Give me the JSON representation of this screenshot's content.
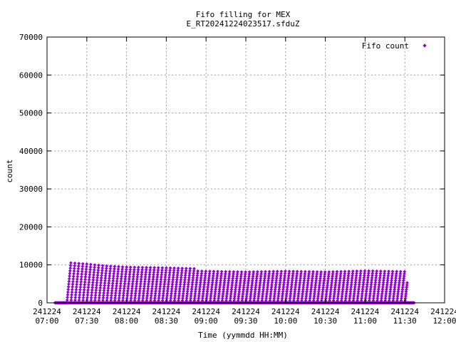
{
  "chart_data": {
    "type": "scatter",
    "title": [
      "Fifo filling for MEX",
      "E_RT20241224023517.sfduZ"
    ],
    "xlabel": "Time (yymmdd HH:MM)",
    "ylabel": "count",
    "grid": true,
    "legend_position": "top-right",
    "xlim": [
      "07:00",
      "12:00"
    ],
    "ylim": [
      0,
      70000
    ],
    "x_ticks": [
      [
        "241224",
        "07:00"
      ],
      [
        "241224",
        "07:30"
      ],
      [
        "241224",
        "08:00"
      ],
      [
        "241224",
        "08:30"
      ],
      [
        "241224",
        "09:00"
      ],
      [
        "241224",
        "09:30"
      ],
      [
        "241224",
        "10:00"
      ],
      [
        "241224",
        "10:30"
      ],
      [
        "241224",
        "11:00"
      ],
      [
        "241224",
        "11:30"
      ],
      [
        "241224",
        "12:00"
      ]
    ],
    "y_ticks": [
      "0",
      "10000",
      "20000",
      "30000",
      "40000",
      "50000",
      "60000",
      "70000"
    ],
    "series": [
      {
        "name": "Fifo count",
        "color": "#9400d3",
        "marker": "diamond",
        "data_start": "07:06",
        "ramp_start": "07:15",
        "ramp_end": "11:32",
        "data_end": "11:37",
        "ramp_period_minutes": 3,
        "ramp_min": 0,
        "ramp_peaks": [
          [
            "07:15",
            10600
          ],
          [
            "07:30",
            10200
          ],
          [
            "07:45",
            9700
          ],
          [
            "08:00",
            9400
          ],
          [
            "08:30",
            9200
          ],
          [
            "09:00",
            8900
          ],
          [
            "09:30",
            8700
          ],
          [
            "10:00",
            8900
          ],
          [
            "10:30",
            8700
          ],
          [
            "11:00",
            9000
          ],
          [
            "11:30",
            8800
          ]
        ]
      }
    ]
  }
}
